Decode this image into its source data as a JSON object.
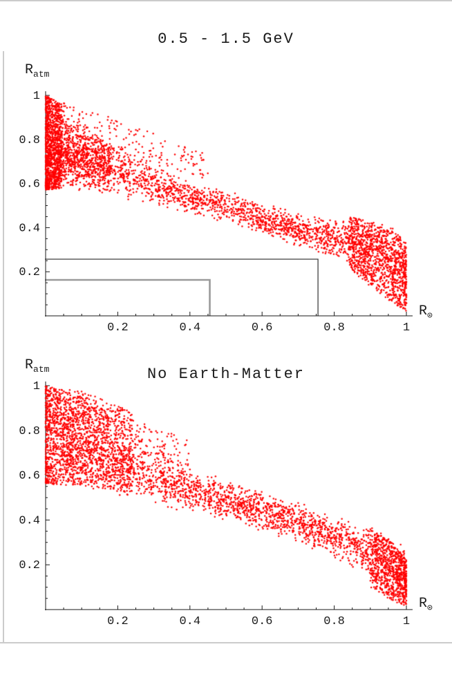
{
  "page": {
    "background": "#ffffff",
    "frame_color": "#cbcbcb",
    "text_color": "#1a1a1a"
  },
  "chart_data": [
    {
      "type": "scatter",
      "title": "0.5 - 1.5 GeV",
      "ylabel_base": "R",
      "ylabel_sub": "atm",
      "xlabel_base": "R",
      "xlabel_sub": "⊙",
      "xlim": [
        0,
        1
      ],
      "ylim": [
        0,
        1
      ],
      "x_ticks": {
        "values": [
          0.2,
          0.4,
          0.6,
          0.8,
          1.0
        ],
        "labels": [
          "0.2",
          "0.4",
          "0.6",
          "0.8",
          "1"
        ],
        "minor_step": 0.05
      },
      "y_ticks": {
        "values": [
          0.2,
          0.4,
          0.6,
          0.8,
          1.0
        ],
        "labels": [
          "1",
          "0.8",
          "0.6",
          "0.4",
          "0.2"
        ],
        "label_values": [
          1.0,
          0.8,
          0.6,
          0.4,
          0.2
        ],
        "minor_step": 0.05
      },
      "point_color": "#ff0000",
      "point_radius": 1.25,
      "axis_color": "#1a1a1a",
      "seed": 1337,
      "grid": false,
      "legend": null,
      "scatter_bands": [
        {
          "name": "left-strip",
          "n": 1050,
          "x_range": [
            0.0,
            0.045
          ],
          "x_bias": "left",
          "x_pow": 1.4,
          "y_dist": "uniform",
          "envelope": [
            [
              0.0,
              0.57,
              1.0
            ],
            [
              0.045,
              0.58,
              0.96
            ]
          ]
        },
        {
          "name": "left-cloud",
          "n": 600,
          "x_range": [
            0.03,
            0.18
          ],
          "x_bias": "uniform",
          "x_pow": 1.0,
          "y_dist": "center",
          "envelope": [
            [
              0.03,
              0.58,
              0.93
            ],
            [
              0.18,
              0.55,
              0.83
            ]
          ]
        },
        {
          "name": "main-band",
          "n": 2100,
          "x_range": [
            0.02,
            1.0
          ],
          "x_bias": "uniform",
          "x_pow": 1.0,
          "y_dist": "center",
          "envelope": [
            [
              0.02,
              0.58,
              0.95
            ],
            [
              0.1,
              0.56,
              0.86
            ],
            [
              0.2,
              0.53,
              0.79
            ],
            [
              0.3,
              0.5,
              0.7
            ],
            [
              0.4,
              0.46,
              0.62
            ],
            [
              0.5,
              0.42,
              0.57
            ],
            [
              0.6,
              0.37,
              0.52
            ],
            [
              0.7,
              0.31,
              0.47
            ],
            [
              0.8,
              0.26,
              0.44
            ],
            [
              0.9,
              0.19,
              0.43
            ],
            [
              1.0,
              0.05,
              0.35
            ]
          ]
        },
        {
          "name": "upper-fan",
          "n": 170,
          "x_range": [
            0.04,
            0.45
          ],
          "x_bias": "left",
          "x_pow": 1.3,
          "y_dist": "uniform",
          "envelope": [
            [
              0.04,
              0.84,
              0.97
            ],
            [
              0.2,
              0.72,
              0.89
            ],
            [
              0.45,
              0.62,
              0.73
            ]
          ]
        },
        {
          "name": "right-blob",
          "n": 900,
          "x_range": [
            0.84,
            1.0
          ],
          "x_bias": "right",
          "x_pow": 1.25,
          "y_dist": "uniform",
          "envelope": [
            [
              0.84,
              0.22,
              0.45
            ],
            [
              0.9,
              0.13,
              0.43
            ],
            [
              0.96,
              0.06,
              0.4
            ],
            [
              1.0,
              0.02,
              0.33
            ]
          ]
        }
      ],
      "limit_lines": [
        {
          "x": 0.755,
          "y": 0.257,
          "color": "#3f3f3f",
          "width": 1.3
        },
        {
          "x": 0.455,
          "y": 0.163,
          "color": "#9a9a9a",
          "width": 2.6
        }
      ]
    },
    {
      "type": "scatter",
      "title": "No Earth-Matter",
      "ylabel_base": "R",
      "ylabel_sub": "atm",
      "xlabel_base": "R",
      "xlabel_sub": "⊙",
      "xlim": [
        0,
        1
      ],
      "ylim": [
        0,
        1
      ],
      "x_ticks": {
        "values": [
          0.2,
          0.4,
          0.6,
          0.8,
          1.0
        ],
        "labels": [
          "0.2",
          "0.4",
          "0.6",
          "0.8",
          "1"
        ],
        "minor_step": 0.05
      },
      "y_ticks": {
        "values": [
          0.2,
          0.4,
          0.6,
          0.8,
          1.0
        ],
        "labels": [
          "1",
          "0.8",
          "0.6",
          "0.4",
          "0.2"
        ],
        "label_values": [
          1.0,
          0.8,
          0.6,
          0.4,
          0.2
        ],
        "minor_step": 0.05
      },
      "point_color": "#ff0000",
      "point_radius": 1.25,
      "axis_color": "#1a1a1a",
      "seed": 2024,
      "grid": false,
      "legend": null,
      "scatter_bands": [
        {
          "name": "left-blob",
          "n": 1450,
          "x_range": [
            0.0,
            0.24
          ],
          "x_bias": "left",
          "x_pow": 1.6,
          "y_dist": "uniform",
          "envelope": [
            [
              0.0,
              0.56,
              1.0
            ],
            [
              0.12,
              0.55,
              0.97
            ],
            [
              0.24,
              0.52,
              0.88
            ]
          ]
        },
        {
          "name": "upper-fan",
          "n": 200,
          "x_range": [
            0.05,
            0.4
          ],
          "x_bias": "left",
          "x_pow": 1.2,
          "y_dist": "uniform",
          "envelope": [
            [
              0.05,
              0.85,
              0.97
            ],
            [
              0.2,
              0.75,
              0.9
            ],
            [
              0.4,
              0.6,
              0.75
            ]
          ]
        },
        {
          "name": "main-band",
          "n": 2350,
          "x_range": [
            0.04,
            1.0
          ],
          "x_bias": "uniform",
          "x_pow": 1.0,
          "y_dist": "center",
          "envelope": [
            [
              0.04,
              0.56,
              0.92
            ],
            [
              0.1,
              0.55,
              0.9
            ],
            [
              0.2,
              0.5,
              0.83
            ],
            [
              0.3,
              0.47,
              0.75
            ],
            [
              0.4,
              0.43,
              0.64
            ],
            [
              0.5,
              0.39,
              0.58
            ],
            [
              0.6,
              0.35,
              0.53
            ],
            [
              0.7,
              0.3,
              0.48
            ],
            [
              0.8,
              0.22,
              0.42
            ],
            [
              0.9,
              0.13,
              0.38
            ],
            [
              0.96,
              0.06,
              0.33
            ],
            [
              1.0,
              0.02,
              0.27
            ]
          ]
        },
        {
          "name": "right-tail",
          "n": 600,
          "x_range": [
            0.9,
            1.0
          ],
          "x_bias": "right",
          "x_pow": 1.5,
          "y_dist": "uniform",
          "envelope": [
            [
              0.9,
              0.1,
              0.36
            ],
            [
              0.96,
              0.04,
              0.3
            ],
            [
              1.0,
              0.015,
              0.22
            ]
          ]
        }
      ],
      "limit_lines": []
    }
  ]
}
